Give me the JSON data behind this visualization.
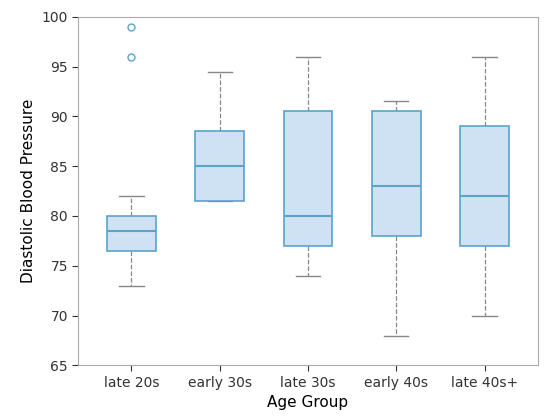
{
  "categories": [
    "late 20s",
    "early 30s",
    "late 30s",
    "early 40s",
    "late 40s+"
  ],
  "boxes": [
    {
      "q1": 76.5,
      "median": 78.5,
      "q3": 80,
      "whisker_low": 73,
      "whisker_high": 82,
      "outliers": [
        96,
        99
      ]
    },
    {
      "q1": 81.5,
      "median": 85,
      "q3": 88.5,
      "whisker_low": 81.5,
      "whisker_high": 94.5,
      "outliers": []
    },
    {
      "q1": 77,
      "median": 80,
      "q3": 90.5,
      "whisker_low": 74,
      "whisker_high": 96,
      "outliers": []
    },
    {
      "q1": 78,
      "median": 83,
      "q3": 90.5,
      "whisker_low": 68,
      "whisker_high": 91.5,
      "outliers": []
    },
    {
      "q1": 77,
      "median": 82,
      "q3": 89,
      "whisker_low": 70,
      "whisker_high": 96,
      "outliers": []
    }
  ],
  "xlabel": "Age Group",
  "ylabel": "Diastolic Blood Pressure",
  "ylim": [
    65,
    100
  ],
  "yticks": [
    65,
    70,
    75,
    80,
    85,
    90,
    95,
    100
  ],
  "box_facecolor": "#cfe2f3",
  "box_edgecolor": "#5ba3c9",
  "median_color": "#5ba3c9",
  "whisker_color": "#888888",
  "cap_color": "#888888",
  "outlier_color": "#5ba3c9",
  "background_color": "#ffffff",
  "box_width": 0.55,
  "figsize": [
    5.6,
    4.2
  ],
  "dpi": 100
}
